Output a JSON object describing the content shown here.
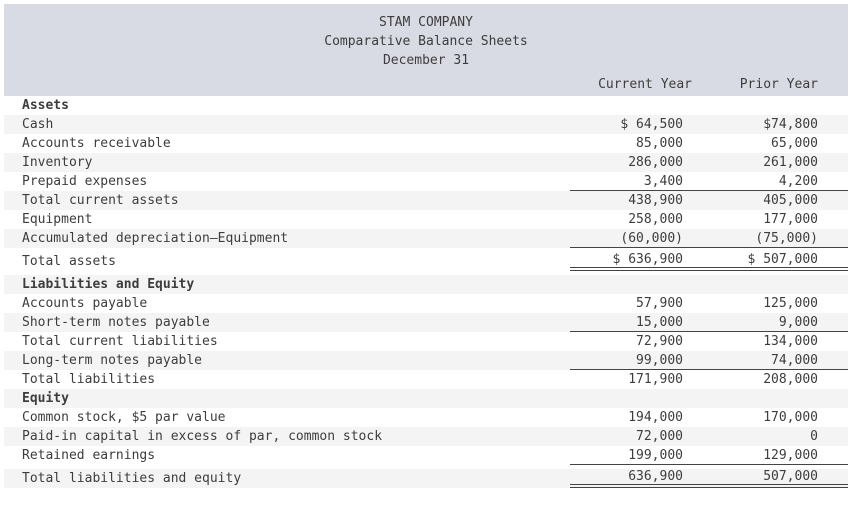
{
  "header": {
    "company": "STAM COMPANY",
    "report_title": "Comparative Balance Sheets",
    "date_line": "December 31"
  },
  "columns": [
    "Current Year",
    "Prior Year"
  ],
  "colors": {
    "header_bg": "#d8dbe4",
    "stripe": "#f4f4f4",
    "text": "#3d3d3d",
    "rule": "#444444"
  },
  "rows": [
    {
      "label": "Assets",
      "cy": "",
      "py": "",
      "section": true,
      "shade": false
    },
    {
      "label": "Cash",
      "cy": "$ 64,500",
      "py": "$74,800",
      "section": false,
      "shade": true
    },
    {
      "label": "Accounts receivable",
      "cy": "85,000",
      "py": "65,000",
      "section": false,
      "shade": false
    },
    {
      "label": "Inventory",
      "cy": "286,000",
      "py": "261,000",
      "section": false,
      "shade": true
    },
    {
      "label": "Prepaid expenses",
      "cy": "3,400",
      "py": "4,200",
      "section": false,
      "shade": false,
      "rule": "single"
    },
    {
      "label": "Total current assets",
      "cy": "438,900",
      "py": "405,000",
      "section": false,
      "shade": true
    },
    {
      "label": "Equipment",
      "cy": "258,000",
      "py": "177,000",
      "section": false,
      "shade": false
    },
    {
      "label": "Accumulated depreciation—Equipment",
      "cy": "(60,000)",
      "py": "(75,000)",
      "section": false,
      "shade": true,
      "rule": "single"
    },
    {
      "label": "Total assets",
      "cy": "$ 636,900",
      "py": "$ 507,000",
      "section": false,
      "shade": false,
      "rule": "double",
      "gap": true
    },
    {
      "label": "Liabilities and Equity",
      "cy": "",
      "py": "",
      "section": true,
      "shade": true,
      "gap": true
    },
    {
      "label": "Accounts payable",
      "cy": "57,900",
      "py": "125,000",
      "section": false,
      "shade": false
    },
    {
      "label": "Short-term notes payable",
      "cy": "15,000",
      "py": "9,000",
      "section": false,
      "shade": true,
      "rule": "single"
    },
    {
      "label": "Total current liabilities",
      "cy": "72,900",
      "py": "134,000",
      "section": false,
      "shade": false
    },
    {
      "label": "Long-term notes payable",
      "cy": "99,000",
      "py": "74,000",
      "section": false,
      "shade": true,
      "rule": "single"
    },
    {
      "label": "Total liabilities",
      "cy": "171,900",
      "py": "208,000",
      "section": false,
      "shade": false
    },
    {
      "label": "Equity",
      "cy": "",
      "py": "",
      "section": true,
      "shade": true
    },
    {
      "label": "Common stock, $5 par value",
      "cy": "194,000",
      "py": "170,000",
      "section": false,
      "shade": false
    },
    {
      "label": "Paid-in capital in excess of par, common stock",
      "cy": "72,000",
      "py": "0",
      "section": false,
      "shade": true
    },
    {
      "label": "Retained earnings",
      "cy": "199,000",
      "py": "129,000",
      "section": false,
      "shade": false,
      "rule": "single"
    },
    {
      "label": "Total liabilities and equity",
      "cy": "636,900",
      "py": "507,000",
      "section": false,
      "shade": true,
      "rule": "double",
      "gap": true
    }
  ]
}
